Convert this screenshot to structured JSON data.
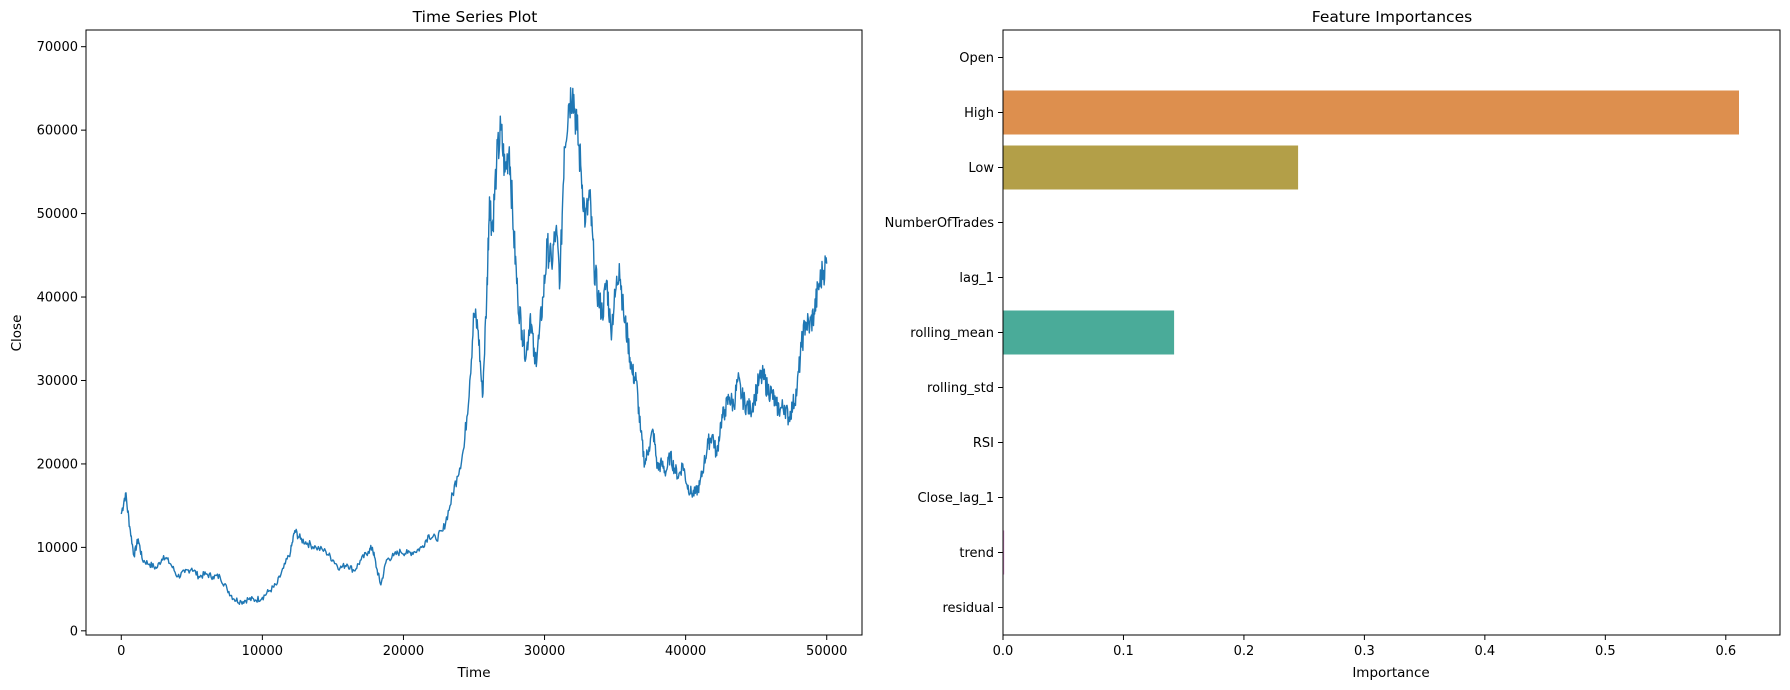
{
  "chart_data": [
    {
      "type": "line",
      "title": "Time Series Plot",
      "xlabel": "Time",
      "ylabel": "Close",
      "xlim": [
        -2500,
        52500
      ],
      "ylim": [
        -500,
        72000
      ],
      "xticks": [
        "0",
        "10000",
        "20000",
        "30000",
        "40000",
        "50000"
      ],
      "yticks": [
        "0",
        "10000",
        "20000",
        "30000",
        "40000",
        "50000",
        "60000",
        "70000"
      ],
      "grid": false,
      "color": "#1f77b4",
      "series": [
        {
          "x": [
            0,
            300,
            600,
            900,
            1200,
            1500,
            2000,
            2500,
            3000,
            3500,
            4000,
            4500,
            5000,
            5500,
            6000,
            6500,
            7000,
            7500,
            8000,
            8500,
            9000,
            9500,
            10000,
            10500,
            11000,
            11500,
            12000,
            12300,
            12700,
            13200,
            13800,
            14500,
            15000,
            15500,
            16000,
            16500,
            17000,
            17500,
            17800,
            18100,
            18400,
            18800,
            19300,
            19800,
            20300,
            20800,
            21300,
            21800,
            22300,
            22800,
            23300,
            23800,
            24300,
            24700,
            25000,
            25300,
            25600,
            25900,
            26100,
            26300,
            26600,
            26900,
            27200,
            27500,
            27800,
            28100,
            28400,
            28700,
            29000,
            29300,
            29600,
            29900,
            30200,
            30500,
            30800,
            31100,
            31400,
            31700,
            32000,
            32300,
            32600,
            32900,
            33200,
            33500,
            33800,
            34100,
            34400,
            34700,
            35000,
            35300,
            35600,
            35900,
            36200,
            36500,
            36800,
            37100,
            37400,
            37700,
            38000,
            38300,
            38600,
            38900,
            39200,
            39500,
            39800,
            40100,
            40400,
            40700,
            41000,
            41300,
            41600,
            41900,
            42200,
            42500,
            42800,
            43100,
            43400,
            43700,
            44000,
            44300,
            44600,
            44900,
            45200,
            45500,
            45800,
            46100,
            46400,
            46700,
            47000,
            47300,
            47600,
            47900,
            48200,
            48500,
            48800,
            49100,
            49400,
            49700,
            50000
          ],
          "y": [
            14000,
            16500,
            12500,
            9000,
            11000,
            8500,
            8000,
            7500,
            9000,
            8000,
            6500,
            7000,
            7500,
            6500,
            6800,
            6500,
            6500,
            5000,
            3800,
            3500,
            3800,
            3700,
            4000,
            4800,
            5500,
            7500,
            9500,
            12000,
            11000,
            10500,
            10000,
            9500,
            8500,
            7500,
            8000,
            7200,
            8500,
            9500,
            10000,
            7500,
            5500,
            8500,
            9000,
            9500,
            9300,
            9500,
            10000,
            11500,
            11000,
            12000,
            15000,
            18500,
            22000,
            30000,
            38000,
            36000,
            28000,
            40000,
            52000,
            48000,
            56000,
            60000,
            55000,
            58000,
            48000,
            40000,
            36000,
            33000,
            38000,
            32000,
            35000,
            40000,
            46000,
            44000,
            48000,
            42000,
            58000,
            63000,
            65000,
            60000,
            55000,
            49000,
            52000,
            44000,
            40000,
            38000,
            42000,
            36000,
            40000,
            44000,
            38000,
            35000,
            31000,
            30000,
            24000,
            20000,
            22000,
            24000,
            19500,
            20000,
            19000,
            21000,
            19500,
            18500,
            20000,
            17500,
            16500,
            16500,
            17500,
            20000,
            22500,
            23500,
            21000,
            25000,
            26500,
            28000,
            27000,
            30000,
            28000,
            27000,
            26500,
            28000,
            30000,
            30500,
            29000,
            28500,
            27000,
            26500,
            27000,
            25500,
            27000,
            29000,
            34000,
            37000,
            36500,
            38000,
            41000,
            43000,
            44000
          ]
        }
      ]
    },
    {
      "type": "bar",
      "orientation": "horizontal",
      "title": "Feature Importances",
      "xlabel": "Importance",
      "ylabel": "",
      "xlim": [
        0,
        0.645
      ],
      "xticks": [
        "0.0",
        "0.1",
        "0.2",
        "0.3",
        "0.4",
        "0.5",
        "0.6"
      ],
      "grid": false,
      "categories": [
        "Open",
        "High",
        "Low",
        "NumberOfTrades",
        "lag_1",
        "rolling_mean",
        "rolling_std",
        "RSI",
        "Close_lag_1",
        "trend",
        "residual"
      ],
      "values": [
        0.0,
        0.611,
        0.245,
        0.0,
        0.0,
        0.142,
        0.0,
        0.0,
        0.0,
        0.001,
        0.0
      ],
      "colors": [
        "#3274a1",
        "#dd8f4e",
        "#b39f48",
        "#6f9e4a",
        "#3a9c71",
        "#4aab99",
        "#3ea6b4",
        "#4e8fd6",
        "#9f8bd6",
        "#d48bc9",
        "#c8779f"
      ]
    }
  ]
}
